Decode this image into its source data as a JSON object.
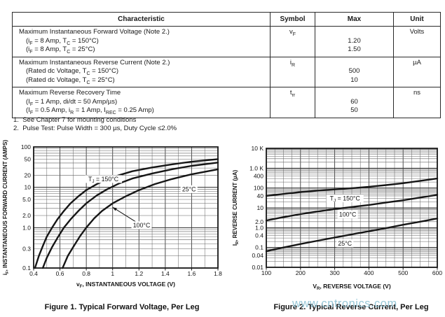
{
  "table": {
    "headers": [
      "Characteristic",
      "Symbol",
      "Max",
      "Unit"
    ],
    "rows": [
      {
        "name": "Maximum Instantaneous Forward Voltage (Note 2.)",
        "conditions": [
          "(i~F~ = 8 Amp, T~C~ = 150°C)",
          "(i~F~ = 8 Amp, T~C~ = 25°C)"
        ],
        "symbol": "v~F~",
        "max": [
          "1.20",
          "1.50"
        ],
        "unit": "Volts"
      },
      {
        "name": "Maximum Instantaneous Reverse Current (Note 2.)",
        "conditions": [
          "(Rated dc Voltage, T~C~ = 150°C)",
          "(Rated dc Voltage, T~C~ = 25°C)"
        ],
        "symbol": "i~R~",
        "max": [
          "500",
          "10"
        ],
        "unit": "µA"
      },
      {
        "name": "Maximum Reverse Recovery Time",
        "conditions": [
          "(I~F~ = 1 Amp, di/dt = 50 Amp/µs)",
          "(I~F~ = 0.5 Amp, i~R~ = 1 Amp, I~REC~ = 0.25 Amp)"
        ],
        "symbol": "t~rr~",
        "max": [
          "60",
          "50"
        ],
        "unit": "ns"
      }
    ],
    "notes": [
      "1.  See Chapter 7 for mounting conditions",
      "2.  Pulse Test: Pulse Width = 300 µs, Duty Cycle ≤2.0%"
    ]
  },
  "watermark": {
    "text": "www.cntronics.com",
    "color": "#8fc3d4"
  },
  "chart_data": [
    {
      "type": "line",
      "title": "Figure 1. Typical Forward Voltage, Per Leg",
      "xlabel": "v~F~, INSTANTANEOUS VOLTAGE (V)",
      "ylabel": "i~F~, INSTANTANEOUS FORWARD CURRENT (AMPS)",
      "x_scale": "linear",
      "xlim": [
        0.4,
        1.8
      ],
      "x_grid_step": 0.1,
      "x_ticks": [
        0.4,
        0.6,
        0.8,
        1,
        1.2,
        1.4,
        1.6,
        1.8
      ],
      "x_tick_labels": [
        "0.4",
        "0.6",
        "0.8",
        "1",
        "1.2",
        "1.4",
        "1.6",
        "1.8"
      ],
      "y_scale": "log",
      "ylim": [
        0.1,
        100
      ],
      "y_ticks": [
        {
          "v": 100,
          "label": "100"
        },
        {
          "v": 50,
          "label": "50"
        },
        {
          "v": 20,
          "label": "20"
        },
        {
          "v": 10,
          "label": "10"
        },
        {
          "v": 5,
          "label": "5.0"
        },
        {
          "v": 2,
          "label": "2.0"
        },
        {
          "v": 1,
          "label": "1.0"
        },
        {
          "v": 0.3,
          "label": "0.3"
        },
        {
          "v": 0.1,
          "label": "0.1"
        }
      ],
      "grid": true,
      "series": [
        {
          "name": "T~J~ = 150°C",
          "points": [
            [
              0.41,
              0.1
            ],
            [
              0.44,
              0.2
            ],
            [
              0.47,
              0.35
            ],
            [
              0.5,
              0.6
            ],
            [
              0.54,
              1.0
            ],
            [
              0.58,
              1.6
            ],
            [
              0.63,
              2.6
            ],
            [
              0.68,
              4.0
            ],
            [
              0.74,
              6.0
            ],
            [
              0.8,
              8.5
            ],
            [
              0.88,
              12
            ],
            [
              0.96,
              16
            ],
            [
              1.05,
              20
            ],
            [
              1.15,
              25
            ],
            [
              1.3,
              31
            ],
            [
              1.45,
              37
            ],
            [
              1.6,
              43
            ],
            [
              1.8,
              50
            ]
          ]
        },
        {
          "name": "100°C",
          "points": [
            [
              0.47,
              0.1
            ],
            [
              0.5,
              0.18
            ],
            [
              0.54,
              0.33
            ],
            [
              0.58,
              0.55
            ],
            [
              0.63,
              1.0
            ],
            [
              0.68,
              1.6
            ],
            [
              0.74,
              2.6
            ],
            [
              0.8,
              4.0
            ],
            [
              0.88,
              6.3
            ],
            [
              0.96,
              9.0
            ],
            [
              1.05,
              12.5
            ],
            [
              1.15,
              16.5
            ],
            [
              1.3,
              22
            ],
            [
              1.45,
              28
            ],
            [
              1.6,
              34
            ],
            [
              1.8,
              41
            ]
          ]
        },
        {
          "name": "25°C",
          "points": [
            [
              0.62,
              0.1
            ],
            [
              0.66,
              0.2
            ],
            [
              0.7,
              0.33
            ],
            [
              0.75,
              0.6
            ],
            [
              0.8,
              1.0
            ],
            [
              0.86,
              1.7
            ],
            [
              0.92,
              2.6
            ],
            [
              1.0,
              4.0
            ],
            [
              1.1,
              6.0
            ],
            [
              1.2,
              8.5
            ],
            [
              1.32,
              12
            ],
            [
              1.45,
              16
            ],
            [
              1.6,
              21
            ],
            [
              1.8,
              28
            ]
          ]
        }
      ],
      "annotations": [
        {
          "text": "T~J~ = 150°C",
          "x": 0.93,
          "y": 16
        },
        {
          "text": "25°C",
          "x": 1.58,
          "y": 9
        },
        {
          "text": "100°C",
          "x": 1.22,
          "y": 1.15,
          "arrow_to": [
            1.0,
            3.2
          ]
        }
      ]
    },
    {
      "type": "line",
      "title": "Figure 2. Typical Reverse Current, Per Leg",
      "xlabel": "V~R~, REVERSE VOLTAGE (V)",
      "ylabel": "I~R~, REVERSE CURRENT (µA)",
      "x_scale": "linear",
      "xlim": [
        100,
        600
      ],
      "x_grid_step": 25,
      "x_ticks": [
        100,
        200,
        300,
        400,
        500,
        600
      ],
      "x_tick_labels": [
        "100",
        "200",
        "300",
        "400",
        "500",
        "600"
      ],
      "y_scale": "log",
      "ylim": [
        0.01,
        10000
      ],
      "y_ticks": [
        {
          "v": 10000,
          "label": "10 K"
        },
        {
          "v": 1000,
          "label": "1.0 K"
        },
        {
          "v": 400,
          "label": "400"
        },
        {
          "v": 100,
          "label": "100"
        },
        {
          "v": 40,
          "label": "40"
        },
        {
          "v": 10,
          "label": "10"
        },
        {
          "v": 2,
          "label": "2.0"
        },
        {
          "v": 1,
          "label": "1.0"
        },
        {
          "v": 0.4,
          "label": "0.4"
        },
        {
          "v": 0.1,
          "label": "0.1"
        },
        {
          "v": 0.04,
          "label": "0.04"
        },
        {
          "v": 0.01,
          "label": "0.01"
        }
      ],
      "grid": true,
      "series": [
        {
          "name": "T~J~ = 150°C",
          "points": [
            [
              100,
              40
            ],
            [
              150,
              50
            ],
            [
              200,
              62
            ],
            [
              250,
              74
            ],
            [
              300,
              85
            ],
            [
              350,
              97
            ],
            [
              400,
              115
            ],
            [
              450,
              140
            ],
            [
              500,
              175
            ],
            [
              550,
              230
            ],
            [
              600,
              300
            ]
          ]
        },
        {
          "name": "100°C",
          "points": [
            [
              100,
              2.3
            ],
            [
              150,
              3.4
            ],
            [
              200,
              4.8
            ],
            [
              250,
              6.5
            ],
            [
              300,
              8.7
            ],
            [
              350,
              11
            ],
            [
              400,
              14
            ],
            [
              450,
              18.5
            ],
            [
              500,
              24
            ],
            [
              550,
              33
            ],
            [
              600,
              45
            ]
          ]
        },
        {
          "name": "25°C",
          "points": [
            [
              100,
              0.065
            ],
            [
              150,
              0.1
            ],
            [
              200,
              0.15
            ],
            [
              250,
              0.22
            ],
            [
              300,
              0.32
            ],
            [
              350,
              0.46
            ],
            [
              400,
              0.66
            ],
            [
              450,
              0.95
            ],
            [
              500,
              1.4
            ],
            [
              550,
              2.0
            ],
            [
              600,
              2.9
            ]
          ]
        }
      ],
      "annotations": [
        {
          "text": "T~J~ = 150°C",
          "x": 330,
          "y": 30
        },
        {
          "text": "100°C",
          "x": 338,
          "y": 4.6
        },
        {
          "text": "25°C",
          "x": 330,
          "y": 0.16
        }
      ]
    }
  ]
}
